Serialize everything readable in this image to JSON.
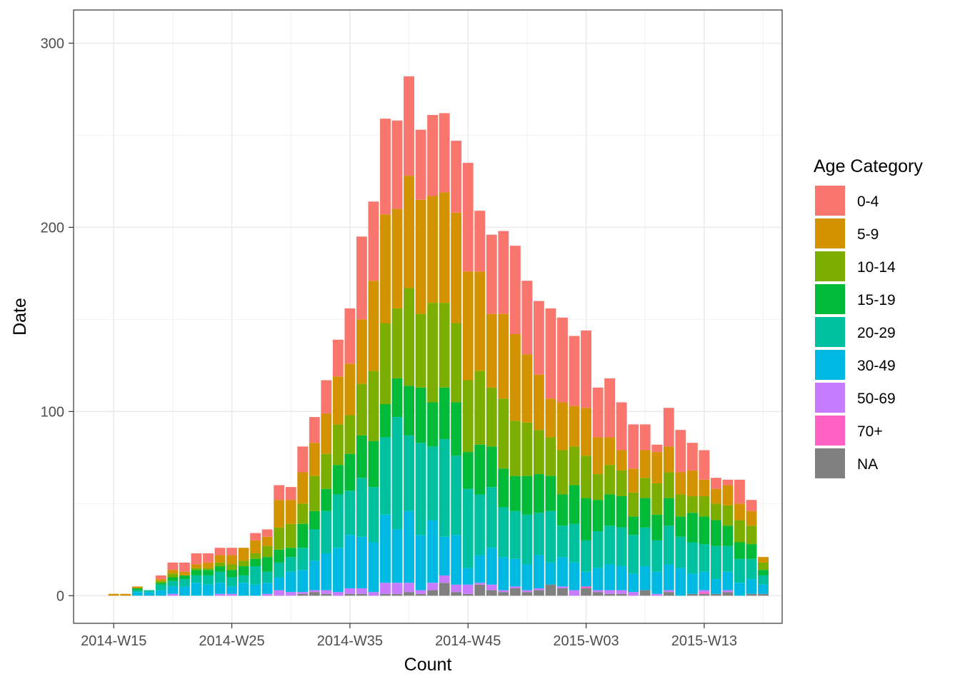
{
  "chart_data": {
    "type": "bar",
    "stacked": true,
    "title": "",
    "xlabel": "Count",
    "ylabel": "Date",
    "ylim": [
      -15,
      318
    ],
    "y_ticks": [
      0,
      100,
      200,
      300
    ],
    "x_tick_labels": [
      "2014-W15",
      "2014-W25",
      "2014-W35",
      "2014-W45",
      "2015-W03",
      "2015-W13"
    ],
    "x_tick_positions": [
      1,
      11,
      21,
      31,
      41,
      51
    ],
    "xlim": [
      -2.4,
      57.6
    ],
    "grid": true,
    "legend": {
      "title": "Age Category",
      "position": "right",
      "entries": [
        "0-4",
        "5-9",
        "10-14",
        "15-19",
        "20-29",
        "30-49",
        "50-69",
        "70+",
        "NA"
      ]
    },
    "colors": [
      "#F8766D",
      "#D39200",
      "#7CAE00",
      "#00BA38",
      "#00C19F",
      "#00B9E3",
      "#C77CFF",
      "#FF61C3",
      "#808080"
    ],
    "categories": [
      "2014-W15",
      "2014-W16",
      "2014-W17",
      "2014-W18",
      "2014-W19",
      "2014-W20",
      "2014-W21",
      "2014-W22",
      "2014-W23",
      "2014-W24",
      "2014-W25",
      "2014-W26",
      "2014-W27",
      "2014-W28",
      "2014-W29",
      "2014-W30",
      "2014-W31",
      "2014-W32",
      "2014-W33",
      "2014-W34",
      "2014-W35",
      "2014-W36",
      "2014-W37",
      "2014-W38",
      "2014-W39",
      "2014-W40",
      "2014-W41",
      "2014-W42",
      "2014-W43",
      "2014-W44",
      "2014-W45",
      "2014-W46",
      "2014-W47",
      "2014-W48",
      "2014-W49",
      "2014-W50",
      "2014-W51",
      "2014-W52",
      "2015-W01",
      "2015-W02",
      "2015-W03",
      "2015-W04",
      "2015-W05",
      "2015-W06",
      "2015-W07",
      "2015-W08",
      "2015-W09",
      "2015-W10",
      "2015-W11",
      "2015-W12",
      "2015-W13",
      "2015-W14",
      "2015-W15",
      "2015-W16",
      "2015-W17",
      "2015-W18"
    ],
    "series": [
      {
        "name": "NA",
        "values": [
          0,
          0,
          0,
          0,
          0,
          0,
          0,
          0,
          0,
          0,
          0,
          0,
          0,
          0,
          0,
          0,
          1,
          2,
          1,
          0,
          1,
          1,
          0,
          1,
          1,
          2,
          1,
          3,
          7,
          2,
          1,
          6,
          3,
          2,
          4,
          2,
          3,
          6,
          4,
          0,
          4,
          2,
          1,
          1,
          0,
          3,
          0,
          2,
          0,
          1,
          1,
          1,
          2,
          0,
          1,
          1
        ]
      },
      {
        "name": "70+",
        "values": [
          0,
          0,
          0,
          0,
          0,
          0,
          0,
          0,
          0,
          0,
          0,
          0,
          0,
          0,
          0,
          0,
          0,
          0,
          0,
          0,
          0,
          0,
          0,
          0,
          0,
          0,
          0,
          0,
          0,
          0,
          0,
          0,
          0,
          0,
          0,
          0,
          0,
          0,
          0,
          0,
          1,
          0,
          0,
          0,
          0,
          0,
          0,
          0,
          0,
          0,
          1,
          0,
          0,
          0,
          0,
          0
        ]
      },
      {
        "name": "50-69",
        "values": [
          0,
          0,
          0,
          0,
          0,
          1,
          0,
          0,
          0,
          1,
          1,
          0,
          0,
          1,
          3,
          2,
          1,
          1,
          2,
          2,
          3,
          3,
          2,
          6,
          6,
          5,
          2,
          4,
          4,
          4,
          5,
          1,
          3,
          1,
          1,
          1,
          1,
          0,
          1,
          3,
          0,
          1,
          2,
          2,
          2,
          0,
          1,
          1,
          0,
          0,
          1,
          0,
          1,
          0,
          0,
          0
        ]
      },
      {
        "name": "30-49",
        "values": [
          0,
          0,
          2,
          2,
          3,
          4,
          5,
          7,
          6,
          6,
          4,
          7,
          6,
          6,
          7,
          11,
          12,
          16,
          20,
          24,
          29,
          28,
          27,
          37,
          29,
          39,
          30,
          34,
          21,
          27,
          9,
          15,
          20,
          18,
          15,
          14,
          18,
          12,
          16,
          15,
          8,
          12,
          14,
          13,
          10,
          13,
          12,
          14,
          15,
          11,
          10,
          8,
          10,
          7,
          8,
          5
        ]
      },
      {
        "name": "20-29",
        "values": [
          0,
          0,
          1,
          1,
          3,
          3,
          4,
          4,
          5,
          6,
          5,
          4,
          10,
          6,
          8,
          8,
          12,
          17,
          23,
          29,
          24,
          32,
          30,
          42,
          61,
          41,
          50,
          40,
          53,
          43,
          43,
          33,
          33,
          27,
          26,
          27,
          23,
          28,
          17,
          21,
          17,
          20,
          21,
          21,
          21,
          21,
          17,
          21,
          17,
          17,
          15,
          18,
          14,
          13,
          11,
          5
        ]
      },
      {
        "name": "15-19",
        "values": [
          0,
          0,
          1,
          0,
          1,
          2,
          2,
          3,
          3,
          3,
          4,
          5,
          4,
          8,
          7,
          5,
          13,
          10,
          12,
          16,
          20,
          23,
          25,
          18,
          21,
          27,
          30,
          24,
          28,
          29,
          20,
          27,
          22,
          21,
          19,
          21,
          21,
          19,
          17,
          21,
          23,
          17,
          17,
          17,
          10,
          16,
          14,
          15,
          11,
          16,
          15,
          14,
          11,
          9,
          8,
          3
        ]
      },
      {
        "name": "10-14",
        "values": [
          0,
          0,
          0,
          0,
          1,
          2,
          0,
          1,
          1,
          2,
          3,
          3,
          3,
          6,
          12,
          13,
          11,
          19,
          19,
          22,
          21,
          28,
          38,
          44,
          38,
          53,
          40,
          54,
          46,
          43,
          39,
          40,
          32,
          38,
          30,
          29,
          24,
          21,
          24,
          21,
          23,
          14,
          16,
          14,
          13,
          11,
          17,
          14,
          12,
          9,
          11,
          9,
          11,
          12,
          10,
          4
        ]
      },
      {
        "name": "5-9",
        "values": [
          1,
          1,
          1,
          0,
          1,
          2,
          2,
          2,
          3,
          4,
          5,
          7,
          7,
          5,
          15,
          13,
          17,
          18,
          22,
          26,
          28,
          35,
          49,
          59,
          54,
          61,
          62,
          58,
          60,
          60,
          59,
          54,
          40,
          46,
          47,
          37,
          30,
          21,
          26,
          22,
          26,
          20,
          15,
          11,
          13,
          15,
          17,
          14,
          12,
          14,
          9,
          8,
          11,
          9,
          8,
          3
        ]
      },
      {
        "name": "0-4",
        "values": [
          0,
          0,
          0,
          0,
          2,
          4,
          5,
          6,
          5,
          4,
          4,
          0,
          4,
          4,
          8,
          7,
          14,
          14,
          18,
          20,
          30,
          45,
          43,
          52,
          48,
          54,
          38,
          44,
          43,
          39,
          59,
          33,
          43,
          45,
          48,
          40,
          40,
          49,
          46,
          38,
          42,
          27,
          32,
          26,
          24,
          14,
          4,
          21,
          23,
          15,
          16,
          6,
          3,
          13,
          6,
          0
        ]
      }
    ]
  }
}
